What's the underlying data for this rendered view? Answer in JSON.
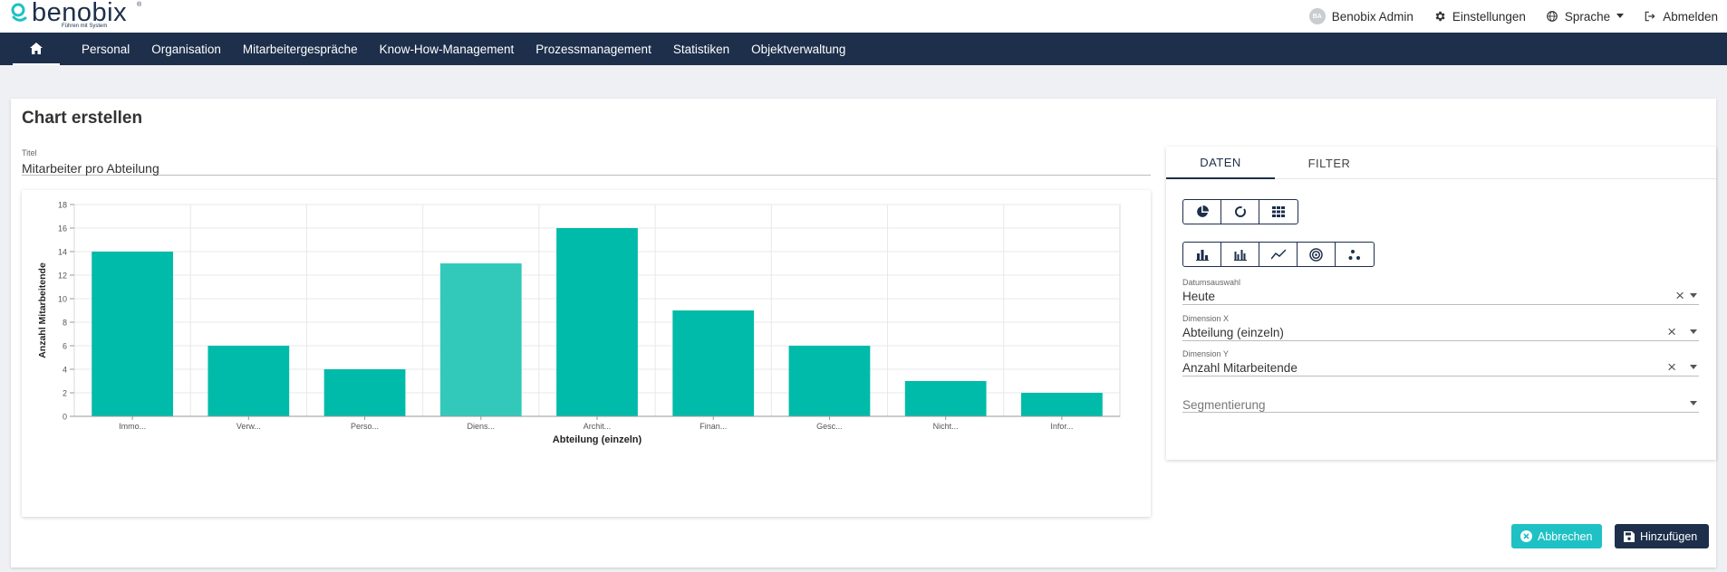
{
  "header": {
    "logo_text": "benobix",
    "logo_tagline": "Führen mit System",
    "logo_tm": "®",
    "user": {
      "initials": "BA",
      "name": "Benobix Admin"
    },
    "settings_label": "Einstellungen",
    "language_label": "Sprache",
    "logout_label": "Abmelden"
  },
  "nav": {
    "items": [
      "Personal",
      "Organisation",
      "Mitarbeitergespräche",
      "Know-How-Management",
      "Prozessmanagement",
      "Statistiken",
      "Objektverwaltung"
    ]
  },
  "page": {
    "title": "Chart erstellen",
    "title_field_label": "Titel",
    "title_field_value": "Mitarbeiter pro Abteilung"
  },
  "chart_data": {
    "type": "bar",
    "categories": [
      "Immo...",
      "Verw...",
      "Perso...",
      "Diens...",
      "Archit...",
      "Finan...",
      "Gesc...",
      "Nicht...",
      "Infor..."
    ],
    "values": [
      14,
      6,
      4,
      13,
      16,
      9,
      6,
      3,
      2
    ],
    "highlight_index": 3,
    "xlabel": "Abteilung (einzeln)",
    "ylabel": "Anzahl Mitarbeitende",
    "ylim": [
      0,
      18
    ],
    "yticks": [
      0,
      2,
      4,
      6,
      8,
      10,
      12,
      14,
      16,
      18
    ],
    "color": "#00bba9",
    "highlight_color": "#33c9ba",
    "grid": true
  },
  "panel": {
    "tabs": [
      "DATEN",
      "FILTER"
    ],
    "chart_type_row1": [
      "pie-chart-icon",
      "donut-chart-icon",
      "table-grid-icon"
    ],
    "chart_type_row2": [
      "bar-chart-icon",
      "grouped-bar-chart-icon",
      "line-chart-icon",
      "radar-chart-icon",
      "scatter-chart-icon"
    ],
    "fields": {
      "date": {
        "label": "Datumsauswahl",
        "value": "Heute"
      },
      "dim_x": {
        "label": "Dimension X",
        "value": "Abteilung (einzeln)"
      },
      "dim_y": {
        "label": "Dimension Y",
        "value": "Anzahl Mitarbeitende"
      },
      "segment": {
        "placeholder": "Segmentierung"
      }
    }
  },
  "actions": {
    "cancel_label": "Abbrechen",
    "add_label": "Hinzufügen"
  },
  "colors": {
    "navy": "#1d2f4a",
    "teal": "#1fc1c4",
    "bar": "#00bba9"
  }
}
